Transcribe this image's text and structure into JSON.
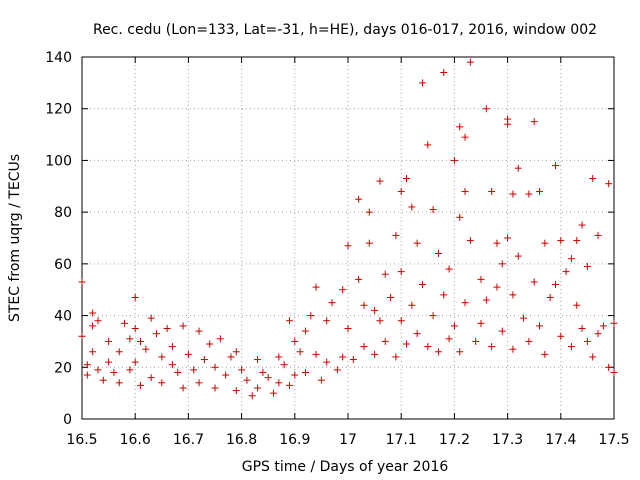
{
  "chart_data": {
    "type": "scatter",
    "title": "Rec. cedu (Lon=133, Lat=-31, h=HE), days 016-017, 2016, window 002",
    "xlabel": "GPS time / Days of year 2016",
    "ylabel": "STEC from uqrg / TECUs",
    "xlim": [
      16.5,
      17.5
    ],
    "ylim": [
      0,
      140
    ],
    "xticks": [
      16.5,
      16.6,
      16.7,
      16.8,
      16.9,
      17,
      17.1,
      17.2,
      17.3,
      17.4,
      17.5
    ],
    "xtick_labels": [
      "16.5",
      "16.6",
      "16.7",
      "16.8",
      "16.9",
      "17",
      "17.1",
      "17.2",
      "17.3",
      "17.4",
      "17.5"
    ],
    "yticks": [
      0,
      20,
      40,
      60,
      80,
      100,
      120,
      140
    ],
    "ytick_labels": [
      "0",
      "20",
      "40",
      "60",
      "80",
      "100",
      "120",
      "140"
    ],
    "grid": true,
    "marker": "+",
    "color": "#cc0000",
    "series": [
      {
        "name": "STEC",
        "points": [
          [
            16.5,
            53
          ],
          [
            16.5,
            32
          ],
          [
            16.51,
            17
          ],
          [
            16.51,
            21
          ],
          [
            16.52,
            41
          ],
          [
            16.52,
            36
          ],
          [
            16.52,
            26
          ],
          [
            16.53,
            38
          ],
          [
            16.53,
            19
          ],
          [
            16.54,
            15
          ],
          [
            16.55,
            30
          ],
          [
            16.55,
            22
          ],
          [
            16.56,
            18
          ],
          [
            16.57,
            26
          ],
          [
            16.57,
            14
          ],
          [
            16.58,
            37
          ],
          [
            16.59,
            31
          ],
          [
            16.59,
            19
          ],
          [
            16.6,
            47
          ],
          [
            16.6,
            35
          ],
          [
            16.6,
            22
          ],
          [
            16.61,
            30
          ],
          [
            16.61,
            13
          ],
          [
            16.62,
            27
          ],
          [
            16.63,
            39
          ],
          [
            16.63,
            16
          ],
          [
            16.64,
            33
          ],
          [
            16.65,
            24
          ],
          [
            16.65,
            14
          ],
          [
            16.66,
            35
          ],
          [
            16.67,
            21
          ],
          [
            16.67,
            28
          ],
          [
            16.68,
            18
          ],
          [
            16.69,
            36
          ],
          [
            16.69,
            12
          ],
          [
            16.7,
            25
          ],
          [
            16.71,
            19
          ],
          [
            16.72,
            34
          ],
          [
            16.72,
            14
          ],
          [
            16.73,
            23
          ],
          [
            16.74,
            29
          ],
          [
            16.75,
            12
          ],
          [
            16.75,
            20
          ],
          [
            16.76,
            31
          ],
          [
            16.77,
            17
          ],
          [
            16.78,
            24
          ],
          [
            16.79,
            11
          ],
          [
            16.79,
            26
          ],
          [
            16.8,
            19
          ],
          [
            16.81,
            15
          ],
          [
            16.82,
            9
          ],
          [
            16.83,
            23
          ],
          [
            16.83,
            12
          ],
          [
            16.84,
            18
          ],
          [
            16.85,
            16
          ],
          [
            16.86,
            10
          ],
          [
            16.87,
            24
          ],
          [
            16.87,
            14
          ],
          [
            16.88,
            21
          ],
          [
            16.89,
            38
          ],
          [
            16.89,
            13
          ],
          [
            16.9,
            30
          ],
          [
            16.9,
            17
          ],
          [
            16.91,
            26
          ],
          [
            16.92,
            34
          ],
          [
            16.92,
            18
          ],
          [
            16.93,
            40
          ],
          [
            16.94,
            51
          ],
          [
            16.94,
            25
          ],
          [
            16.95,
            15
          ],
          [
            16.96,
            38
          ],
          [
            16.96,
            22
          ],
          [
            16.97,
            45
          ],
          [
            16.98,
            19
          ],
          [
            16.99,
            50
          ],
          [
            16.99,
            24
          ],
          [
            17.0,
            67
          ],
          [
            17.0,
            35
          ],
          [
            17.01,
            23
          ],
          [
            17.02,
            85
          ],
          [
            17.02,
            54
          ],
          [
            17.03,
            44
          ],
          [
            17.03,
            28
          ],
          [
            17.04,
            80
          ],
          [
            17.04,
            68
          ],
          [
            17.05,
            42
          ],
          [
            17.05,
            25
          ],
          [
            17.06,
            92
          ],
          [
            17.06,
            38
          ],
          [
            17.07,
            56
          ],
          [
            17.07,
            30
          ],
          [
            17.08,
            47
          ],
          [
            17.09,
            71
          ],
          [
            17.09,
            24
          ],
          [
            17.1,
            88
          ],
          [
            17.1,
            57
          ],
          [
            17.1,
            38
          ],
          [
            17.11,
            93
          ],
          [
            17.11,
            29
          ],
          [
            17.12,
            82
          ],
          [
            17.12,
            44
          ],
          [
            17.13,
            68
          ],
          [
            17.13,
            33
          ],
          [
            17.14,
            130
          ],
          [
            17.14,
            52
          ],
          [
            17.15,
            106
          ],
          [
            17.15,
            28
          ],
          [
            17.16,
            81
          ],
          [
            17.16,
            40
          ],
          [
            17.17,
            64
          ],
          [
            17.17,
            26
          ],
          [
            17.18,
            134
          ],
          [
            17.18,
            48
          ],
          [
            17.19,
            58
          ],
          [
            17.19,
            31
          ],
          [
            17.2,
            100
          ],
          [
            17.2,
            36
          ],
          [
            17.21,
            113
          ],
          [
            17.21,
            78
          ],
          [
            17.21,
            26
          ],
          [
            17.22,
            109
          ],
          [
            17.22,
            88
          ],
          [
            17.22,
            45
          ],
          [
            17.23,
            138
          ],
          [
            17.23,
            69
          ],
          [
            17.24,
            30
          ],
          [
            17.25,
            54
          ],
          [
            17.25,
            37
          ],
          [
            17.26,
            120
          ],
          [
            17.26,
            46
          ],
          [
            17.27,
            88
          ],
          [
            17.27,
            28
          ],
          [
            17.28,
            68
          ],
          [
            17.28,
            51
          ],
          [
            17.29,
            60
          ],
          [
            17.29,
            34
          ],
          [
            17.3,
            116
          ],
          [
            17.3,
            114
          ],
          [
            17.3,
            70
          ],
          [
            17.31,
            87
          ],
          [
            17.31,
            48
          ],
          [
            17.31,
            27
          ],
          [
            17.32,
            97
          ],
          [
            17.32,
            63
          ],
          [
            17.33,
            39
          ],
          [
            17.34,
            87
          ],
          [
            17.34,
            30
          ],
          [
            17.35,
            115
          ],
          [
            17.35,
            53
          ],
          [
            17.36,
            88
          ],
          [
            17.36,
            36
          ],
          [
            17.37,
            68
          ],
          [
            17.37,
            25
          ],
          [
            17.38,
            47
          ],
          [
            17.39,
            98
          ],
          [
            17.39,
            52
          ],
          [
            17.4,
            69
          ],
          [
            17.4,
            32
          ],
          [
            17.41,
            57
          ],
          [
            17.42,
            62
          ],
          [
            17.42,
            28
          ],
          [
            17.43,
            69
          ],
          [
            17.43,
            44
          ],
          [
            17.44,
            75
          ],
          [
            17.44,
            35
          ],
          [
            17.45,
            59
          ],
          [
            17.45,
            30
          ],
          [
            17.46,
            93
          ],
          [
            17.46,
            24
          ],
          [
            17.47,
            71
          ],
          [
            17.47,
            33
          ],
          [
            17.48,
            36
          ],
          [
            17.49,
            91
          ],
          [
            17.49,
            20
          ],
          [
            17.5,
            18
          ],
          [
            17.5,
            37
          ]
        ]
      }
    ]
  }
}
